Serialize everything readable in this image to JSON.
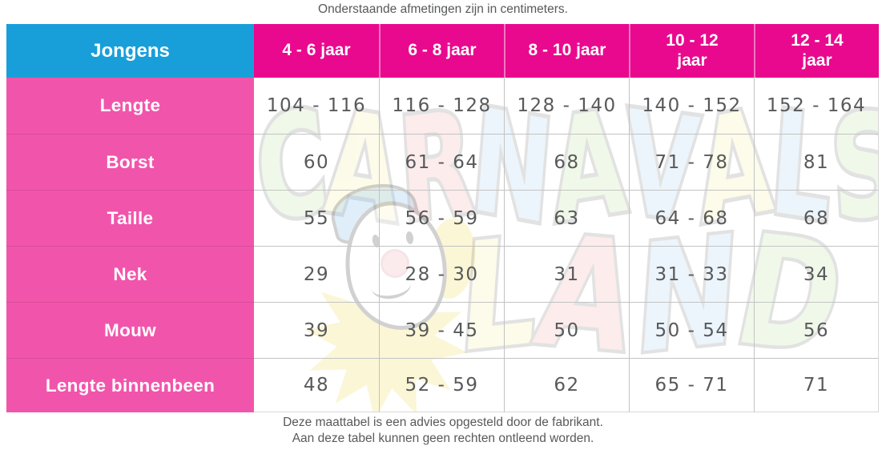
{
  "caption_top": "Onderstaande afmetingen zijn in centimeters.",
  "table": {
    "corner_label": "Jongens",
    "column_headers": [
      "4 - 6 jaar",
      "6 - 8 jaar",
      "8 - 10 jaar",
      "10 - 12\njaar",
      "12 - 14\njaar"
    ],
    "rows": [
      {
        "label": "Lengte",
        "values": [
          "104 - 116",
          "116 - 128",
          "128 - 140",
          "140 - 152",
          "152 - 164"
        ]
      },
      {
        "label": "Borst",
        "values": [
          "60",
          "61 - 64",
          "68",
          "71 - 78",
          "81"
        ]
      },
      {
        "label": "Taille",
        "values": [
          "55",
          "56 - 59",
          "63",
          "64 - 68",
          "68"
        ]
      },
      {
        "label": "Nek",
        "values": [
          "29",
          "28 - 30",
          "31",
          "31 - 33",
          "34"
        ]
      },
      {
        "label": "Mouw",
        "values": [
          "39",
          "39 - 45",
          "50",
          "50 - 54",
          "56"
        ]
      },
      {
        "label": "Lengte binnenbeen",
        "values": [
          "48",
          "52 - 59",
          "62",
          "65 - 71",
          "71"
        ]
      }
    ]
  },
  "footer": {
    "line1": "Deze maattabel is een advies opgesteld door de fabrikant.",
    "line2": "Aan deze tabel kunnen geen rechten ontleend worden."
  },
  "watermark": {
    "word1": "CARNAVALS",
    "word2": "LAND",
    "word1_colors": [
      "#a5d87f",
      "#f2e57c",
      "#ef8d8d",
      "#8fc3ea",
      "#a5d87f",
      "#8fc3ea",
      "#f2e57c",
      "#8fc3ea",
      "#a5d87f"
    ],
    "word2_colors": [
      "#f2e57c",
      "#ef8d8d",
      "#8fc3ea",
      "#a5d87f"
    ]
  },
  "colors": {
    "header_blue": "#189fd9",
    "header_magenta": "#e9098e",
    "label_pink": "#f155ab",
    "cell_text": "#58595b",
    "grid_line": "#c3c3c3"
  },
  "chart_data": {
    "type": "table",
    "title": "Jongens maattabel (cm)",
    "columns": [
      "Jongens",
      "4 - 6 jaar",
      "6 - 8 jaar",
      "8 - 10 jaar",
      "10 - 12 jaar",
      "12 - 14 jaar"
    ],
    "rows": [
      [
        "Lengte",
        "104 - 116",
        "116 - 128",
        "128 - 140",
        "140 - 152",
        "152 - 164"
      ],
      [
        "Borst",
        "60",
        "61 - 64",
        "68",
        "71 - 78",
        "81"
      ],
      [
        "Taille",
        "55",
        "56 - 59",
        "63",
        "64 - 68",
        "68"
      ],
      [
        "Nek",
        "29",
        "28 - 30",
        "31",
        "31 - 33",
        "34"
      ],
      [
        "Mouw",
        "39",
        "39 - 45",
        "50",
        "50 - 54",
        "56"
      ],
      [
        "Lengte binnenbeen",
        "48",
        "52 - 59",
        "62",
        "65 - 71",
        "71"
      ]
    ],
    "caption_above": "Onderstaande afmetingen zijn in centimeters.",
    "caption_below": [
      "Deze maattabel is een advies opgesteld door de fabrikant.",
      "Aan deze tabel kunnen geen rechten ontleend worden."
    ]
  }
}
